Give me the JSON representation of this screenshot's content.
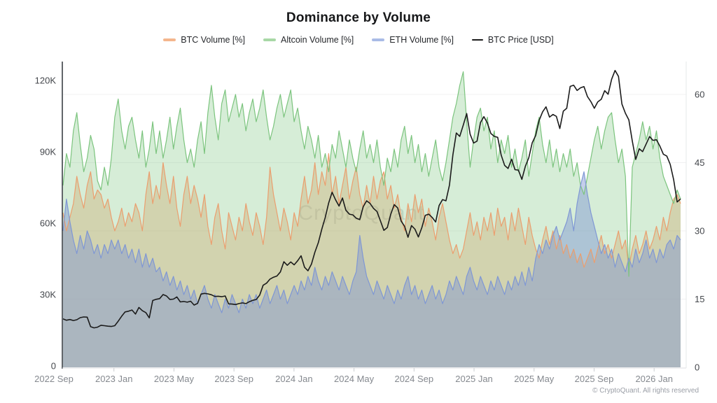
{
  "header": {
    "title": "Dominance by Volume"
  },
  "legend": [
    {
      "label": "BTC Volume [%]",
      "swatch_color": "#f4b68d",
      "type": "area"
    },
    {
      "label": "Altcoin Volume [%]",
      "swatch_color": "#a8d8a6",
      "type": "area"
    },
    {
      "label": "ETH Volume [%]",
      "swatch_color": "#a9bbe6",
      "type": "area"
    },
    {
      "label": "BTC Price [USD]",
      "swatch_color": "#1b1b1b",
      "type": "line"
    }
  ],
  "watermark": "CryptoQuant",
  "footer": {
    "copyright": "© CryptoQuant. All rights reserved"
  },
  "chart_data": {
    "type": "area+line",
    "title": "Dominance by Volume",
    "x_start": "2022-09",
    "x_end": "2026-02",
    "x_step": "1 week",
    "grid": "horizontal lines at right-axis ticks",
    "legend_position": "top-center",
    "x_ticks": [
      {
        "label": "2022 Sep",
        "month": 0
      },
      {
        "label": "2023 Jan",
        "month": 4
      },
      {
        "label": "2023 May",
        "month": 8
      },
      {
        "label": "2023 Sep",
        "month": 12
      },
      {
        "label": "2024 Jan",
        "month": 16
      },
      {
        "label": "2024 May",
        "month": 20
      },
      {
        "label": "2024 Sep",
        "month": 24
      },
      {
        "label": "2025 Jan",
        "month": 28
      },
      {
        "label": "2025 May",
        "month": 32
      },
      {
        "label": "2025 Sep",
        "month": 36
      },
      {
        "label": "2026 Jan",
        "month": 40
      }
    ],
    "y_left_axis": {
      "series": "BTC Price [USD]",
      "tick_values": [
        0,
        30,
        60,
        90,
        120
      ],
      "tick_labels": [
        "0",
        "30K",
        "60K",
        "90K",
        "120K"
      ],
      "unit": "thousand USD",
      "ylim": [
        0,
        128
      ]
    },
    "y_right_axis": {
      "series": "volume dominance",
      "tick_values": [
        0,
        15,
        30,
        45,
        60
      ],
      "tick_labels": [
        "0",
        "15",
        "30",
        "45",
        "60"
      ],
      "unit": "%",
      "ylim": [
        0,
        67
      ]
    },
    "series": [
      {
        "name": "BTC Volume [%]",
        "axis": "right",
        "style": "area",
        "line_color": "#eb9e6e",
        "fill_color": "rgba(244,164,116,0.42)",
        "values": [
          34,
          30,
          33,
          36,
          42,
          38,
          35,
          40,
          43,
          37,
          39,
          38,
          35,
          37,
          33,
          30,
          32,
          35,
          31,
          34,
          32,
          36,
          34,
          30,
          38,
          43,
          36,
          40,
          37,
          45,
          40,
          36,
          42,
          35,
          31,
          38,
          42,
          36,
          40,
          37,
          33,
          38,
          31,
          27,
          33,
          36,
          30,
          26,
          34,
          31,
          28,
          33,
          30,
          36,
          32,
          29,
          34,
          31,
          27,
          33,
          44,
          38,
          34,
          30,
          35,
          32,
          28,
          34,
          31,
          37,
          42,
          36,
          39,
          45,
          38,
          43,
          40,
          47,
          38,
          42,
          36,
          40,
          44,
          37,
          41,
          44,
          38,
          35,
          40,
          36,
          42,
          37,
          41,
          43,
          37,
          40,
          35,
          38,
          33,
          30,
          36,
          32,
          38,
          34,
          37,
          31,
          35,
          32,
          28,
          33,
          36,
          32,
          28,
          25,
          27,
          24,
          26,
          30,
          34,
          29,
          32,
          28,
          33,
          30,
          34,
          29,
          35,
          31,
          33,
          28,
          34,
          30,
          35,
          31,
          27,
          33,
          29,
          26,
          24,
          28,
          31,
          27,
          30,
          26,
          29,
          25,
          27,
          24,
          26,
          23,
          25,
          22,
          24,
          26,
          23,
          26,
          29,
          25,
          27,
          24,
          27,
          30,
          26,
          28,
          22,
          26,
          29,
          25,
          27,
          30,
          26,
          28,
          31,
          28,
          33,
          30,
          34,
          37,
          38,
          36
        ]
      },
      {
        "name": "Altcoin Volume [%]",
        "axis": "right",
        "style": "area",
        "line_color": "#7cc47e",
        "fill_color": "rgba(129,199,132,0.32)",
        "values": [
          40,
          47,
          44,
          52,
          56,
          49,
          43,
          46,
          51,
          48,
          41,
          39,
          44,
          40,
          46,
          55,
          59,
          52,
          48,
          53,
          55,
          50,
          46,
          52,
          44,
          48,
          54,
          47,
          52,
          46,
          50,
          55,
          48,
          53,
          57,
          50,
          45,
          48,
          44,
          50,
          54,
          47,
          56,
          62,
          55,
          50,
          58,
          61,
          54,
          57,
          60,
          55,
          58,
          52,
          56,
          59,
          54,
          57,
          61,
          55,
          50,
          53,
          57,
          60,
          55,
          58,
          61,
          54,
          57,
          52,
          48,
          53,
          50,
          46,
          51,
          44,
          47,
          43,
          49,
          46,
          52,
          48,
          44,
          50,
          46,
          43,
          48,
          52,
          46,
          49,
          45,
          50,
          44,
          40,
          46,
          43,
          48,
          44,
          50,
          53,
          47,
          51,
          45,
          49,
          43,
          47,
          42,
          46,
          50,
          44,
          41,
          45,
          50,
          55,
          58,
          62,
          65,
          54,
          44,
          50,
          55,
          57,
          52,
          55,
          48,
          52,
          45,
          50,
          47,
          51,
          44,
          48,
          43,
          46,
          50,
          42,
          47,
          52,
          55,
          49,
          45,
          50,
          44,
          48,
          43,
          47,
          44,
          48,
          42,
          45,
          40,
          38,
          42,
          46,
          50,
          53,
          48,
          52,
          55,
          56,
          50,
          45,
          48,
          42,
          20,
          44,
          47,
          50,
          54,
          50,
          53,
          48,
          52,
          46,
          42,
          40,
          38,
          36,
          39,
          37
        ]
      },
      {
        "name": "ETH Volume [%]",
        "axis": "right",
        "style": "area",
        "line_color": "#7f97d4",
        "fill_color": "rgba(124,147,210,0.45)",
        "values": [
          30,
          37,
          32,
          28,
          25,
          29,
          26,
          30,
          28,
          25,
          27,
          24,
          27,
          25,
          28,
          26,
          28,
          25,
          27,
          24,
          26,
          23,
          26,
          22,
          25,
          22,
          24,
          21,
          22,
          19,
          21,
          18,
          20,
          17,
          19,
          16,
          18,
          15,
          17,
          14,
          16,
          18,
          15,
          13,
          16,
          14,
          12,
          15,
          13,
          16,
          14,
          12,
          15,
          13,
          16,
          14,
          16,
          13,
          15,
          17,
          14,
          16,
          18,
          15,
          17,
          14,
          16,
          18,
          16,
          19,
          17,
          20,
          18,
          22,
          19,
          17,
          20,
          18,
          21,
          19,
          17,
          20,
          18,
          16,
          19,
          21,
          29,
          24,
          20,
          18,
          16,
          19,
          17,
          15,
          18,
          16,
          14,
          17,
          15,
          18,
          20,
          16,
          18,
          15,
          17,
          14,
          16,
          18,
          15,
          17,
          14,
          16,
          19,
          17,
          20,
          18,
          16,
          20,
          22,
          19,
          17,
          20,
          18,
          16,
          19,
          17,
          20,
          18,
          16,
          19,
          17,
          20,
          18,
          21,
          18,
          22,
          19,
          24,
          27,
          25,
          28,
          26,
          29,
          31,
          28,
          30,
          32,
          35,
          30,
          36,
          40,
          43,
          38,
          34,
          31,
          28,
          25,
          27,
          24,
          26,
          22,
          25,
          23,
          21,
          24,
          22,
          26,
          23,
          25,
          28,
          24,
          26,
          23,
          26,
          24,
          27,
          28,
          26,
          29,
          28
        ]
      },
      {
        "name": "BTC Price [USD]",
        "axis": "left",
        "style": "line",
        "line_color": "#1b1b1b",
        "unit": "thousand USD",
        "values": [
          19.8,
          19.2,
          19.5,
          19.1,
          19.4,
          20.3,
          20.6,
          20.5,
          16.5,
          16.0,
          16.3,
          17.1,
          16.9,
          16.7,
          16.6,
          16.9,
          18.8,
          20.9,
          22.7,
          23.0,
          23.5,
          21.8,
          24.6,
          23.2,
          22.4,
          20.2,
          27.5,
          28.0,
          28.3,
          30.0,
          29.4,
          27.9,
          28.1,
          29.0,
          26.9,
          27.1,
          26.8,
          27.2,
          25.6,
          26.3,
          30.2,
          30.5,
          30.3,
          29.9,
          29.2,
          29.3,
          29.1,
          29.4,
          26.1,
          26.0,
          25.8,
          26.2,
          26.5,
          26.2,
          27.0,
          27.6,
          27.9,
          29.8,
          33.9,
          34.8,
          36.5,
          37.3,
          37.8,
          39.5,
          43.8,
          42.3,
          43.7,
          42.5,
          44.2,
          46.3,
          41.5,
          40.0,
          42.8,
          47.8,
          51.8,
          57.5,
          62.4,
          68.5,
          73.0,
          69.8,
          67.2,
          70.6,
          65.4,
          63.8,
          63.5,
          62.1,
          61.5,
          66.9,
          69.4,
          68.3,
          66.2,
          64.9,
          61.0,
          57.0,
          58.2,
          63.8,
          67.8,
          66.4,
          60.9,
          58.7,
          54.1,
          59.0,
          57.5,
          54.2,
          58.1,
          63.3,
          63.8,
          62.4,
          60.5,
          67.4,
          69.9,
          69.4,
          76.0,
          88.7,
          97.9,
          96.5,
          101.2,
          106.1,
          97.4,
          93.7,
          94.5,
          102.3,
          104.8,
          102.1,
          97.7,
          96.5,
          96.1,
          88.6,
          84.3,
          83.0,
          86.9,
          82.5,
          82.3,
          78.4,
          83.9,
          87.5,
          93.8,
          96.9,
          103.2,
          106.8,
          108.9,
          104.6,
          105.7,
          104.9,
          99.8,
          107.1,
          108.3,
          117.5,
          118.0,
          115.8,
          116.9,
          117.4,
          113.2,
          111.1,
          108.3,
          111.0,
          112.1,
          115.7,
          114.2,
          120.5,
          124.2,
          121.7,
          110.1,
          106.2,
          103.4,
          94.6,
          86.8,
          91.3,
          90.1,
          93.2,
          96.4,
          94.8,
          95.1,
          92.4,
          89.0,
          88.2,
          84.7,
          78.3,
          68.9,
          70.2
        ]
      }
    ]
  }
}
